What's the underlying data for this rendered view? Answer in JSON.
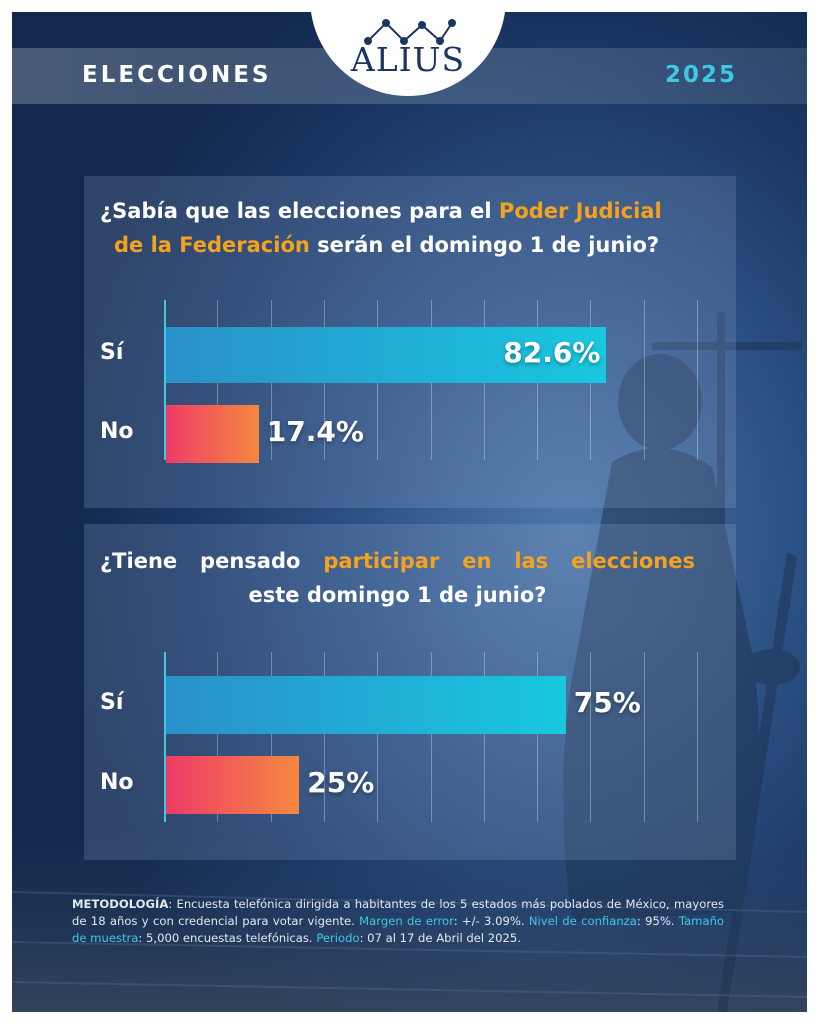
{
  "header": {
    "title": "ELECCIONES",
    "year": "2025"
  },
  "logo": {
    "text": "ALIUS"
  },
  "colors": {
    "accent": "#3ec8e3",
    "highlight": "#f5a21e",
    "bar_si": "#18c8df",
    "bar_no": "#ef3b68"
  },
  "questions": [
    {
      "pre": "¿Sabía que las elecciones para el ",
      "hl1": "Poder Judicial",
      "hl2": "de la Federación",
      "post": " serán el domingo 1 de junio?"
    },
    {
      "pre": "¿Tiene pensado ",
      "hl": "participar en las elecciones",
      "post": "este domingo 1 de junio?"
    }
  ],
  "chart_data": [
    {
      "type": "bar",
      "orientation": "horizontal",
      "categories": [
        "Sí",
        "No"
      ],
      "values": [
        82.6,
        17.4
      ],
      "value_labels": [
        "82.6%",
        "17.4%"
      ],
      "xlim": [
        0,
        100
      ],
      "grid": true
    },
    {
      "type": "bar",
      "orientation": "horizontal",
      "categories": [
        "Sí",
        "No"
      ],
      "values": [
        75,
        25
      ],
      "value_labels": [
        "75%",
        "25%"
      ],
      "xlim": [
        0,
        100
      ],
      "grid": true
    }
  ],
  "methodology": {
    "label": "METODOLOGÍA",
    "text1": ": Encuesta telefónica dirigida a habitantes de los 5 estados más poblados de México, mayores de 18 años y con credencial para votar vigente. ",
    "k1": "Margen de error",
    "v1": ": +/- 3.09%. ",
    "k2": "Nivel de confianza",
    "v2": ": 95%. ",
    "k3": "Tamaño de muestra",
    "v3": ": 5,000 encuestas telefónicas. ",
    "k4": "Periodo",
    "v4": ": 07 al 17 de Abril del 2025."
  }
}
